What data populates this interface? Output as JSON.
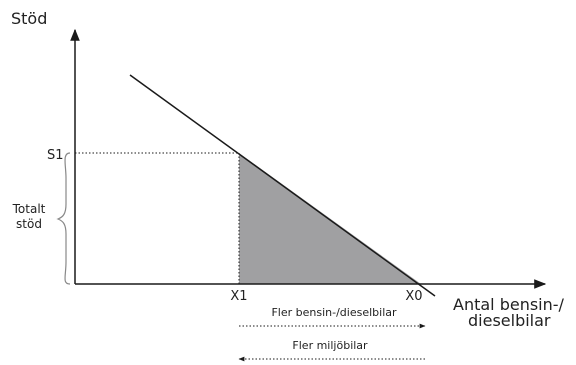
{
  "y_axis": {
    "label": "Stöd"
  },
  "x_axis": {
    "label_line1": "Antal bensin-/",
    "label_line2": "dieselbilar"
  },
  "points": {
    "s1": "S1",
    "x1": "X1",
    "x0": "X0"
  },
  "brace": {
    "line1": "Totalt",
    "line2": "stöd"
  },
  "arrows": {
    "right": "Fler bensin-/dieselbilar",
    "left": "Fler miljöbilar"
  },
  "colors": {
    "shaded_area": "#a0a0a2",
    "lines": "#1a1a1a"
  }
}
